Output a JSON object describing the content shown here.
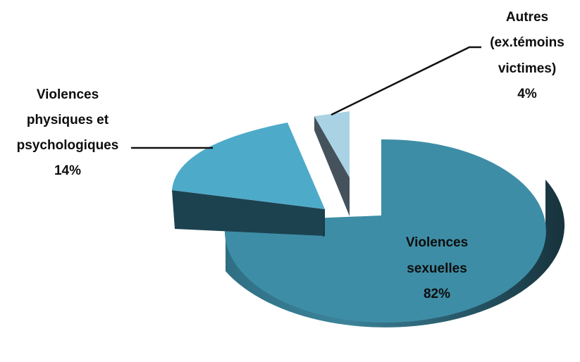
{
  "chart_data": {
    "type": "pie",
    "title": "",
    "style": "3d-exploded",
    "slices": [
      {
        "name": "Violences sexuelles",
        "label_lines": [
          "Violences",
          "sexuelles"
        ],
        "value": 82,
        "value_label": "82%",
        "color": "#3e8da6"
      },
      {
        "name": "Violences physiques et psychologiques",
        "label_lines": [
          "Violences",
          "physiques et",
          "psychologiques"
        ],
        "value": 14,
        "value_label": "14%",
        "color": "#4eaac9"
      },
      {
        "name": "Autres (ex.témoins victimes)",
        "label_lines": [
          "Autres",
          "(ex.témoins",
          "victimes)"
        ],
        "value": 4,
        "value_label": "4%",
        "color": "#a9d3e4"
      }
    ]
  }
}
